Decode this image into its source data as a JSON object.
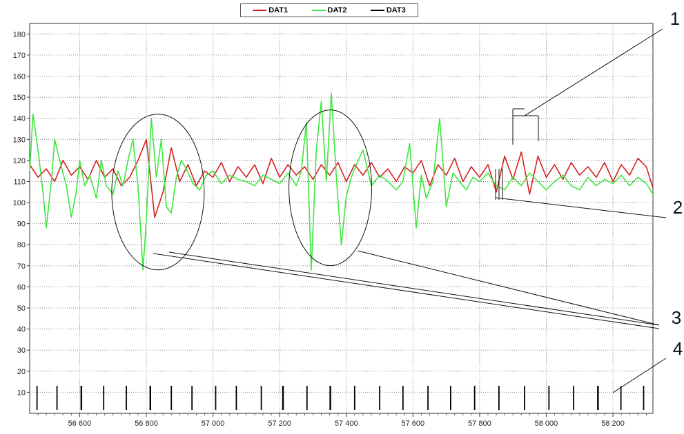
{
  "chart_data": {
    "type": "line",
    "title": "",
    "xlabel": "",
    "ylabel": "",
    "xlim": [
      56450,
      58320
    ],
    "ylim": [
      0,
      185
    ],
    "grid": true,
    "legend_position": "top-center",
    "y_ticks": [
      10,
      20,
      30,
      40,
      50,
      60,
      70,
      80,
      90,
      100,
      110,
      120,
      130,
      140,
      150,
      160,
      170,
      180
    ],
    "x_ticks": [
      56600,
      56800,
      57000,
      57200,
      57400,
      57600,
      57800,
      58000,
      58200
    ],
    "x_tick_labels": [
      "56 600",
      "56 800",
      "57 000",
      "57 200",
      "57 400",
      "57 600",
      "57 800",
      "58 000",
      "58 200"
    ],
    "series": [
      {
        "name": "DAT1",
        "color": "#d42020",
        "x": [
          56450,
          56475,
          56500,
          56525,
          56550,
          56575,
          56600,
          56625,
          56650,
          56675,
          56700,
          56725,
          56750,
          56775,
          56800,
          56825,
          56850,
          56875,
          56900,
          56925,
          56950,
          56975,
          57000,
          57025,
          57050,
          57075,
          57100,
          57125,
          57150,
          57175,
          57200,
          57225,
          57250,
          57275,
          57300,
          57325,
          57350,
          57375,
          57400,
          57425,
          57450,
          57475,
          57500,
          57525,
          57550,
          57575,
          57600,
          57625,
          57650,
          57675,
          57700,
          57725,
          57750,
          57775,
          57800,
          57825,
          57850,
          57875,
          57900,
          57925,
          57950,
          57975,
          58000,
          58025,
          58050,
          58075,
          58100,
          58125,
          58150,
          58175,
          58200,
          58225,
          58250,
          58275,
          58300,
          58320
        ],
        "y": [
          118,
          112,
          116,
          110,
          120,
          113,
          117,
          111,
          120,
          112,
          116,
          108,
          112,
          120,
          130,
          93,
          105,
          126,
          110,
          118,
          108,
          115,
          112,
          119,
          110,
          117,
          112,
          118,
          109,
          121,
          112,
          118,
          113,
          117,
          111,
          118,
          113,
          119,
          110,
          118,
          113,
          119,
          112,
          116,
          110,
          117,
          114,
          120,
          108,
          118,
          113,
          121,
          110,
          117,
          112,
          118,
          105,
          122,
          111,
          124,
          104,
          122,
          112,
          118,
          111,
          119,
          113,
          117,
          112,
          119,
          110,
          118,
          113,
          121,
          117,
          107
        ]
      },
      {
        "name": "DAT2",
        "color": "#3ee63e",
        "x": [
          56450,
          56460,
          56475,
          56490,
          56500,
          56515,
          56525,
          56540,
          56560,
          56575,
          56590,
          56600,
          56615,
          56630,
          56650,
          56665,
          56680,
          56700,
          56715,
          56730,
          56745,
          56760,
          56775,
          56790,
          56800,
          56815,
          56830,
          56845,
          56860,
          56875,
          56890,
          56905,
          56920,
          56940,
          56960,
          56980,
          57000,
          57025,
          57050,
          57075,
          57100,
          57125,
          57150,
          57175,
          57200,
          57225,
          57250,
          57265,
          57280,
          57295,
          57310,
          57325,
          57340,
          57355,
          57370,
          57385,
          57400,
          57415,
          57430,
          57450,
          57475,
          57500,
          57525,
          57550,
          57570,
          57590,
          57610,
          57625,
          57640,
          57660,
          57680,
          57700,
          57720,
          57740,
          57760,
          57780,
          57800,
          57825,
          57850,
          57875,
          57900,
          57925,
          57950,
          57975,
          58000,
          58025,
          58050,
          58075,
          58100,
          58125,
          58150,
          58175,
          58200,
          58225,
          58250,
          58275,
          58300,
          58320
        ],
        "y": [
          115,
          142,
          125,
          105,
          88,
          110,
          130,
          120,
          108,
          93,
          105,
          120,
          108,
          113,
          102,
          120,
          108,
          104,
          115,
          108,
          120,
          130,
          108,
          68,
          92,
          140,
          112,
          130,
          98,
          95,
          112,
          120,
          116,
          109,
          106,
          113,
          115,
          109,
          113,
          111,
          110,
          108,
          113,
          111,
          109,
          114,
          108,
          115,
          138,
          68,
          125,
          148,
          110,
          152,
          112,
          80,
          103,
          112,
          118,
          125,
          108,
          113,
          110,
          106,
          110,
          128,
          88,
          113,
          102,
          110,
          140,
          98,
          114,
          110,
          106,
          112,
          110,
          114,
          108,
          106,
          112,
          108,
          114,
          110,
          106,
          110,
          113,
          108,
          106,
          112,
          108,
          111,
          109,
          113,
          108,
          112,
          109,
          104
        ]
      },
      {
        "name": "DAT3",
        "color": "#000000",
        "x": [],
        "y": []
      }
    ],
    "event_marks_x": [
      56472,
      56532,
      56605,
      56672,
      56740,
      56812,
      56875,
      56937,
      57008,
      57070,
      57145,
      57210,
      57282,
      57352,
      57425,
      57500,
      57570,
      57645,
      57713,
      57785,
      57858,
      57935,
      58008,
      58082,
      58155,
      58224,
      58292
    ],
    "event_marks_bold_x": [
      56605,
      56812,
      57210,
      57352,
      58155
    ],
    "annotations": {
      "ellipses": [
        {
          "label": "3",
          "cx": 56835,
          "cy": 105
        },
        {
          "label": "3",
          "cx": 57352,
          "cy": 107
        }
      ],
      "callouts": [
        "1",
        "2",
        "3",
        "4"
      ]
    }
  }
}
